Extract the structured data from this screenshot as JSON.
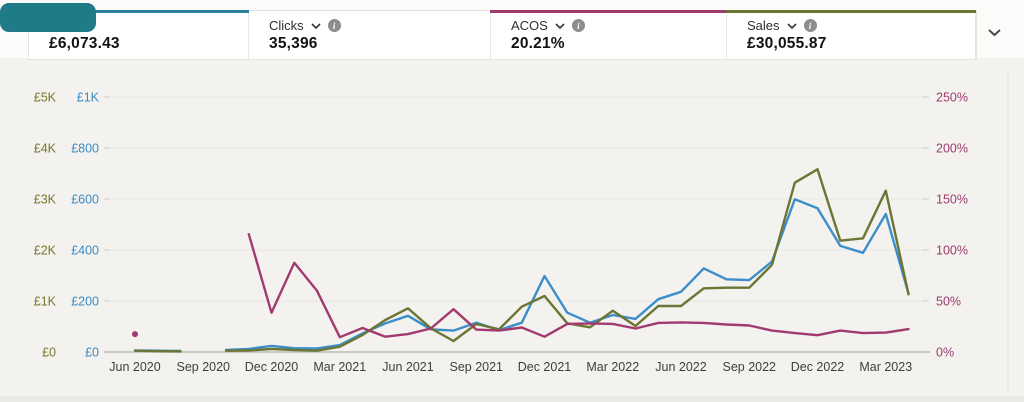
{
  "header": {
    "cards": [
      {
        "label": "",
        "value": "£6,073.43",
        "accent": "#2d7f9e",
        "label_covered_by_overlay": true
      },
      {
        "label": "Clicks",
        "value": "35,396",
        "accent": ""
      },
      {
        "label": "ACOS",
        "value": "20.21%",
        "accent": "#a23a70"
      },
      {
        "label": "Sales",
        "value": "£30,055.87",
        "accent": "#6c7634"
      }
    ],
    "overlay_color": "#1f7b87",
    "collapse_icon": "chevron-down"
  },
  "chart_data": {
    "type": "line",
    "x": [
      "Jun 2020",
      "Jul 2020",
      "Aug 2020",
      "Sep 2020",
      "Oct 2020",
      "Nov 2020",
      "Dec 2020",
      "Jan 2021",
      "Feb 2021",
      "Mar 2021",
      "Apr 2021",
      "May 2021",
      "Jun 2021",
      "Jul 2021",
      "Aug 2021",
      "Sep 2021",
      "Oct 2021",
      "Nov 2021",
      "Dec 2021",
      "Jan 2022",
      "Feb 2022",
      "Mar 2022",
      "Apr 2022",
      "May 2022",
      "Jun 2022",
      "Jul 2022",
      "Aug 2022",
      "Sep 2022",
      "Oct 2022",
      "Nov 2022",
      "Dec 2022",
      "Jan 2023",
      "Feb 2023",
      "Mar 2023",
      "Apr 2023"
    ],
    "x_tick_every": 3,
    "grid": true,
    "legend": "none",
    "axes": {
      "left_sales": {
        "labels": [
          "£5K",
          "£4K",
          "£3K",
          "£2K",
          "£1K",
          "£0"
        ],
        "max": 5000,
        "color": "#75782e"
      },
      "left_spend": {
        "labels": [
          "£1K",
          "£800",
          "£600",
          "£400",
          "£200",
          "£0"
        ],
        "max": 1000,
        "color": "#3a8dc5"
      },
      "right_acos": {
        "labels": [
          "250%",
          "200%",
          "150%",
          "100%",
          "50%",
          "0%"
        ],
        "max": 250,
        "color": "#9d3c6e"
      }
    },
    "series": [
      {
        "name": "spend-blue-line",
        "axis": "left_spend",
        "color": "#3b8ec9",
        "values": [
          6,
          5,
          4,
          null,
          8,
          12,
          24,
          15,
          14,
          27,
          73,
          112,
          142,
          89,
          84,
          115,
          86,
          115,
          298,
          154,
          115,
          145,
          130,
          207,
          236,
          328,
          285,
          282,
          355,
          599,
          564,
          416,
          389,
          541,
          230
        ]
      },
      {
        "name": "sales-olive-line",
        "axis": "left_sales",
        "color": "#6c7634",
        "values": [
          25,
          15,
          12,
          null,
          25,
          30,
          60,
          40,
          26,
          104,
          333,
          627,
          857,
          465,
          216,
          549,
          445,
          888,
          1098,
          563,
          484,
          810,
          510,
          902,
          902,
          1249,
          1261,
          1261,
          1710,
          3320,
          3582,
          2182,
          2229,
          3163,
          1131
        ]
      },
      {
        "name": "acos-magenta-line",
        "axis": "right_acos",
        "color": "#a23a70",
        "values": [
          17.5,
          null,
          null,
          null,
          null,
          115.5,
          38.5,
          87.5,
          60,
          14.5,
          23.5,
          15,
          17.5,
          23,
          42,
          22,
          21,
          24,
          15,
          27.5,
          28,
          27.5,
          23,
          28.5,
          29,
          28.5,
          27,
          26,
          21,
          18.5,
          16.5,
          21,
          18.5,
          19,
          22.5
        ]
      }
    ]
  }
}
